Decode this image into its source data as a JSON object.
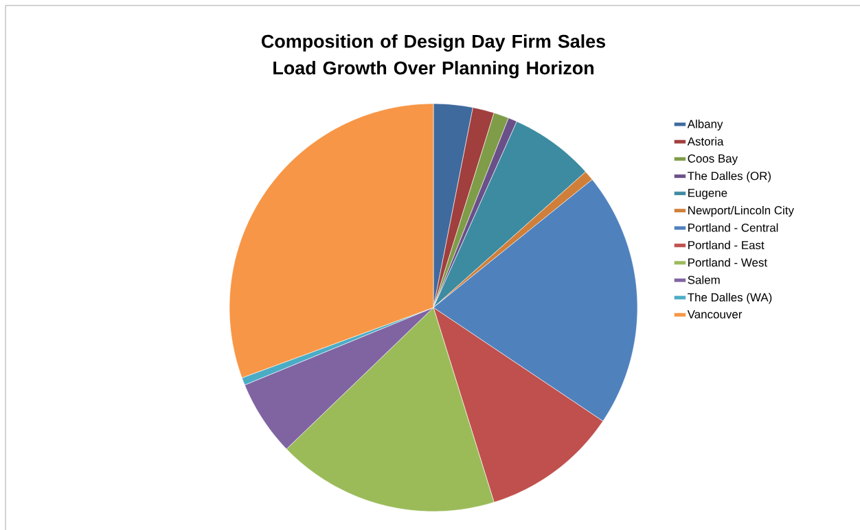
{
  "chart_data": {
    "type": "pie",
    "title": "Composition of Design Day Firm Sales Load Growth Over Planning Horizon",
    "categories": [
      "Albany",
      "Astoria",
      "Coos Bay",
      "The Dalles (OR)",
      "Eugene",
      "Newport/Lincoln City",
      "Portland - Central",
      "Portland - East",
      "Portland - West",
      "Salem",
      "The Dalles (WA)",
      "Vancouver"
    ],
    "values": [
      3.1,
      1.7,
      1.2,
      0.7,
      6.7,
      0.8,
      20.2,
      10.8,
      17.6,
      6.0,
      0.6,
      30.6
    ],
    "colors": [
      "#3f6a9e",
      "#a03f3d",
      "#7f9c48",
      "#6a5089",
      "#3d8ba1",
      "#d07f3a",
      "#4f81bd",
      "#c0504d",
      "#9bbb59",
      "#8064a2",
      "#4bacc6",
      "#f79646"
    ],
    "legend": "right"
  }
}
